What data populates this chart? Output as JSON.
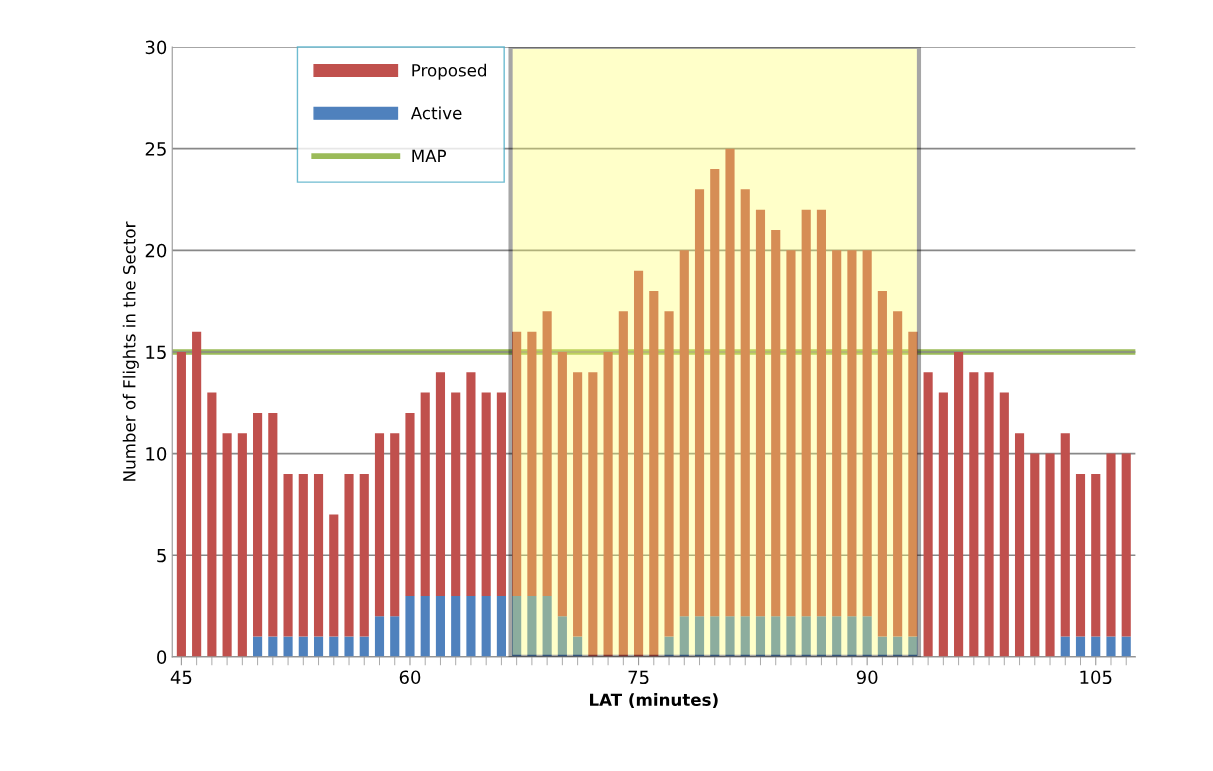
{
  "chart_data": {
    "type": "bar",
    "stacked": true,
    "xlabel": "LAT (minutes)",
    "ylabel": "Number of Flights in the Sector",
    "x": [
      45,
      46,
      47,
      48,
      49,
      50,
      51,
      52,
      53,
      54,
      55,
      56,
      57,
      58,
      59,
      60,
      61,
      62,
      63,
      64,
      65,
      66,
      67,
      68,
      69,
      70,
      71,
      72,
      73,
      74,
      75,
      76,
      77,
      78,
      79,
      80,
      81,
      82,
      83,
      84,
      85,
      86,
      87,
      88,
      89,
      90,
      91,
      92,
      93,
      94,
      95,
      96,
      97,
      98,
      99,
      100,
      101,
      102,
      103,
      104,
      105,
      106,
      107
    ],
    "series": [
      {
        "name": "Active",
        "color": "#4f81bd",
        "values": [
          0,
          0,
          0,
          0,
          0,
          1,
          1,
          1,
          1,
          1,
          1,
          1,
          1,
          2,
          2,
          3,
          3,
          3,
          3,
          3,
          3,
          3,
          3,
          3,
          3,
          2,
          1,
          0,
          0,
          0,
          0,
          0,
          1,
          2,
          2,
          2,
          2,
          2,
          2,
          2,
          2,
          2,
          2,
          2,
          2,
          2,
          1,
          1,
          1,
          0,
          0,
          0,
          0,
          0,
          0,
          0,
          0,
          0,
          1,
          1,
          1,
          1,
          1
        ]
      },
      {
        "name": "Proposed",
        "color": "#c0504d",
        "values": [
          15,
          16,
          13,
          11,
          11,
          11,
          11,
          8,
          8,
          8,
          6,
          8,
          8,
          9,
          9,
          9,
          10,
          11,
          10,
          11,
          10,
          10,
          13,
          13,
          14,
          13,
          13,
          14,
          15,
          17,
          19,
          18,
          16,
          18,
          21,
          22,
          23,
          21,
          20,
          19,
          18,
          20,
          20,
          18,
          18,
          18,
          17,
          16,
          15,
          14,
          13,
          15,
          14,
          14,
          13,
          11,
          10,
          10,
          10,
          8,
          8,
          9,
          9
        ]
      }
    ],
    "xlim": [
      44.4,
      107.6
    ],
    "xticks": [
      45,
      60,
      75,
      90,
      105
    ],
    "ylim": [
      0,
      30
    ],
    "yticks": [
      0,
      5,
      10,
      15,
      20,
      25,
      30
    ],
    "ref_lines": [
      {
        "axis": "y",
        "value": 15,
        "label": "MAP",
        "color": "#9bbb59"
      }
    ],
    "bands": [
      {
        "axis": "x",
        "from": 66.6,
        "to": 93.4,
        "color": "#ffff66"
      }
    ],
    "grid": "y",
    "legend": "top left"
  }
}
